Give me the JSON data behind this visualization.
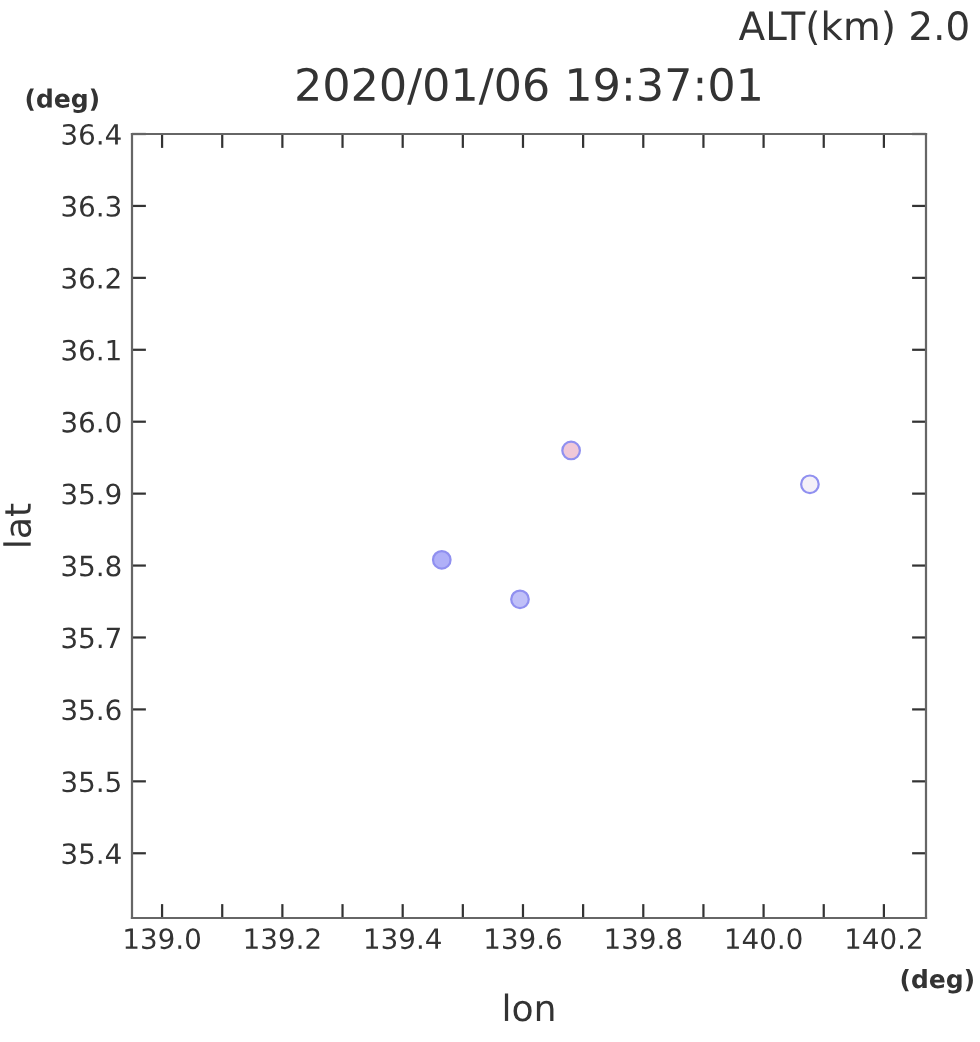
{
  "chart_data": {
    "type": "scatter",
    "title": "2020/01/06 19:37:01",
    "xlabel": "lon",
    "ylabel": "lat",
    "annotations": [
      "ALT(km) 2.0",
      "(deg)",
      "(deg)"
    ],
    "x": [
      139.68,
      139.465,
      139.595,
      140.077
    ],
    "values": [
      35.96,
      35.808,
      35.753,
      35.913
    ],
    "colors": [
      "#f0c8d8",
      "#b0b0f8",
      "#c0c0f8",
      "#f4f0f8"
    ],
    "marker": "circle",
    "xlim": [
      138.95,
      140.27
    ],
    "ylim": [
      35.31,
      36.4
    ],
    "xticks": [
      {
        "value": 139.0,
        "label": "139.0"
      },
      {
        "value": 139.1,
        "label": null
      },
      {
        "value": 139.2,
        "label": "139.2"
      },
      {
        "value": 139.3,
        "label": null
      },
      {
        "value": 139.4,
        "label": "139.4"
      },
      {
        "value": 139.5,
        "label": null
      },
      {
        "value": 139.6,
        "label": "139.6"
      },
      {
        "value": 139.7,
        "label": null
      },
      {
        "value": 139.8,
        "label": "139.8"
      },
      {
        "value": 139.9,
        "label": null
      },
      {
        "value": 140.0,
        "label": "140.0"
      },
      {
        "value": 140.1,
        "label": null
      },
      {
        "value": 140.2,
        "label": "140.2"
      }
    ],
    "yticks": [
      35.4,
      35.5,
      35.6,
      35.7,
      35.8,
      35.9,
      {
        "value": 36.0,
        "label": "36.0"
      },
      36.1,
      36.2,
      36.3,
      36.4
    ],
    "grid": false,
    "legend": false
  }
}
